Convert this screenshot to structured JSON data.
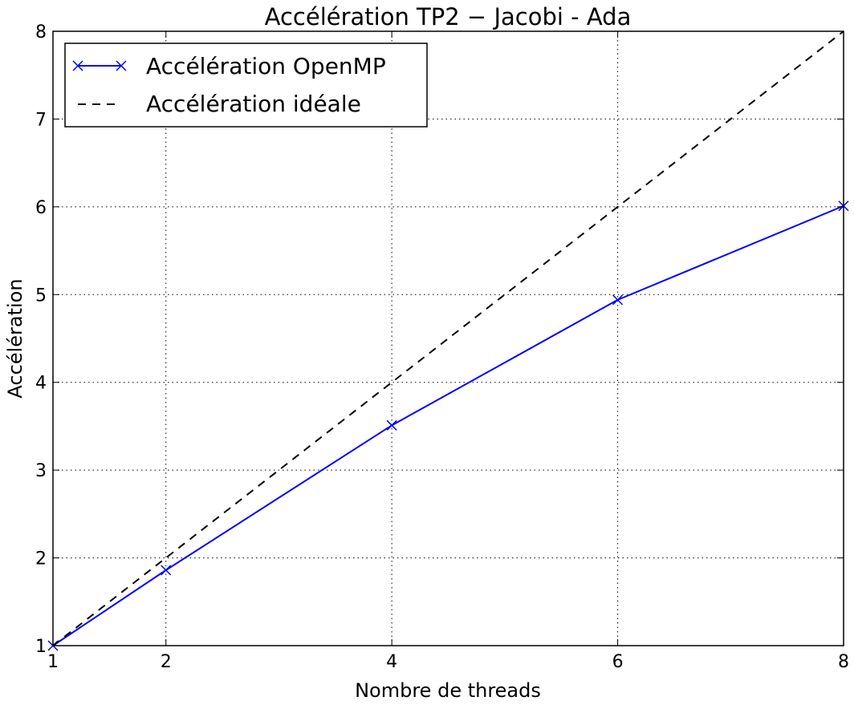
{
  "chart_data": {
    "type": "line",
    "title": "Accélération TP2 − Jacobi - Ada",
    "xlabel": "Nombre de threads",
    "ylabel": "Accélération",
    "xlim": [
      1,
      8
    ],
    "ylim": [
      1,
      8
    ],
    "xticks": [
      1,
      2,
      4,
      6,
      8
    ],
    "yticks": [
      1,
      2,
      3,
      4,
      5,
      6,
      7,
      8
    ],
    "grid": true,
    "legend_position": "top-left",
    "series": [
      {
        "name": "Accélération OpenMP",
        "x": [
          1,
          2,
          4,
          6,
          8
        ],
        "y": [
          1.0,
          1.86,
          3.51,
          4.94,
          6.01
        ],
        "color": "#0000ff",
        "line_style": "solid",
        "marker": "x"
      },
      {
        "name": "Accélération idéale",
        "x": [
          1,
          8
        ],
        "y": [
          1,
          8
        ],
        "color": "#000000",
        "line_style": "dashed",
        "marker": "none"
      }
    ]
  }
}
